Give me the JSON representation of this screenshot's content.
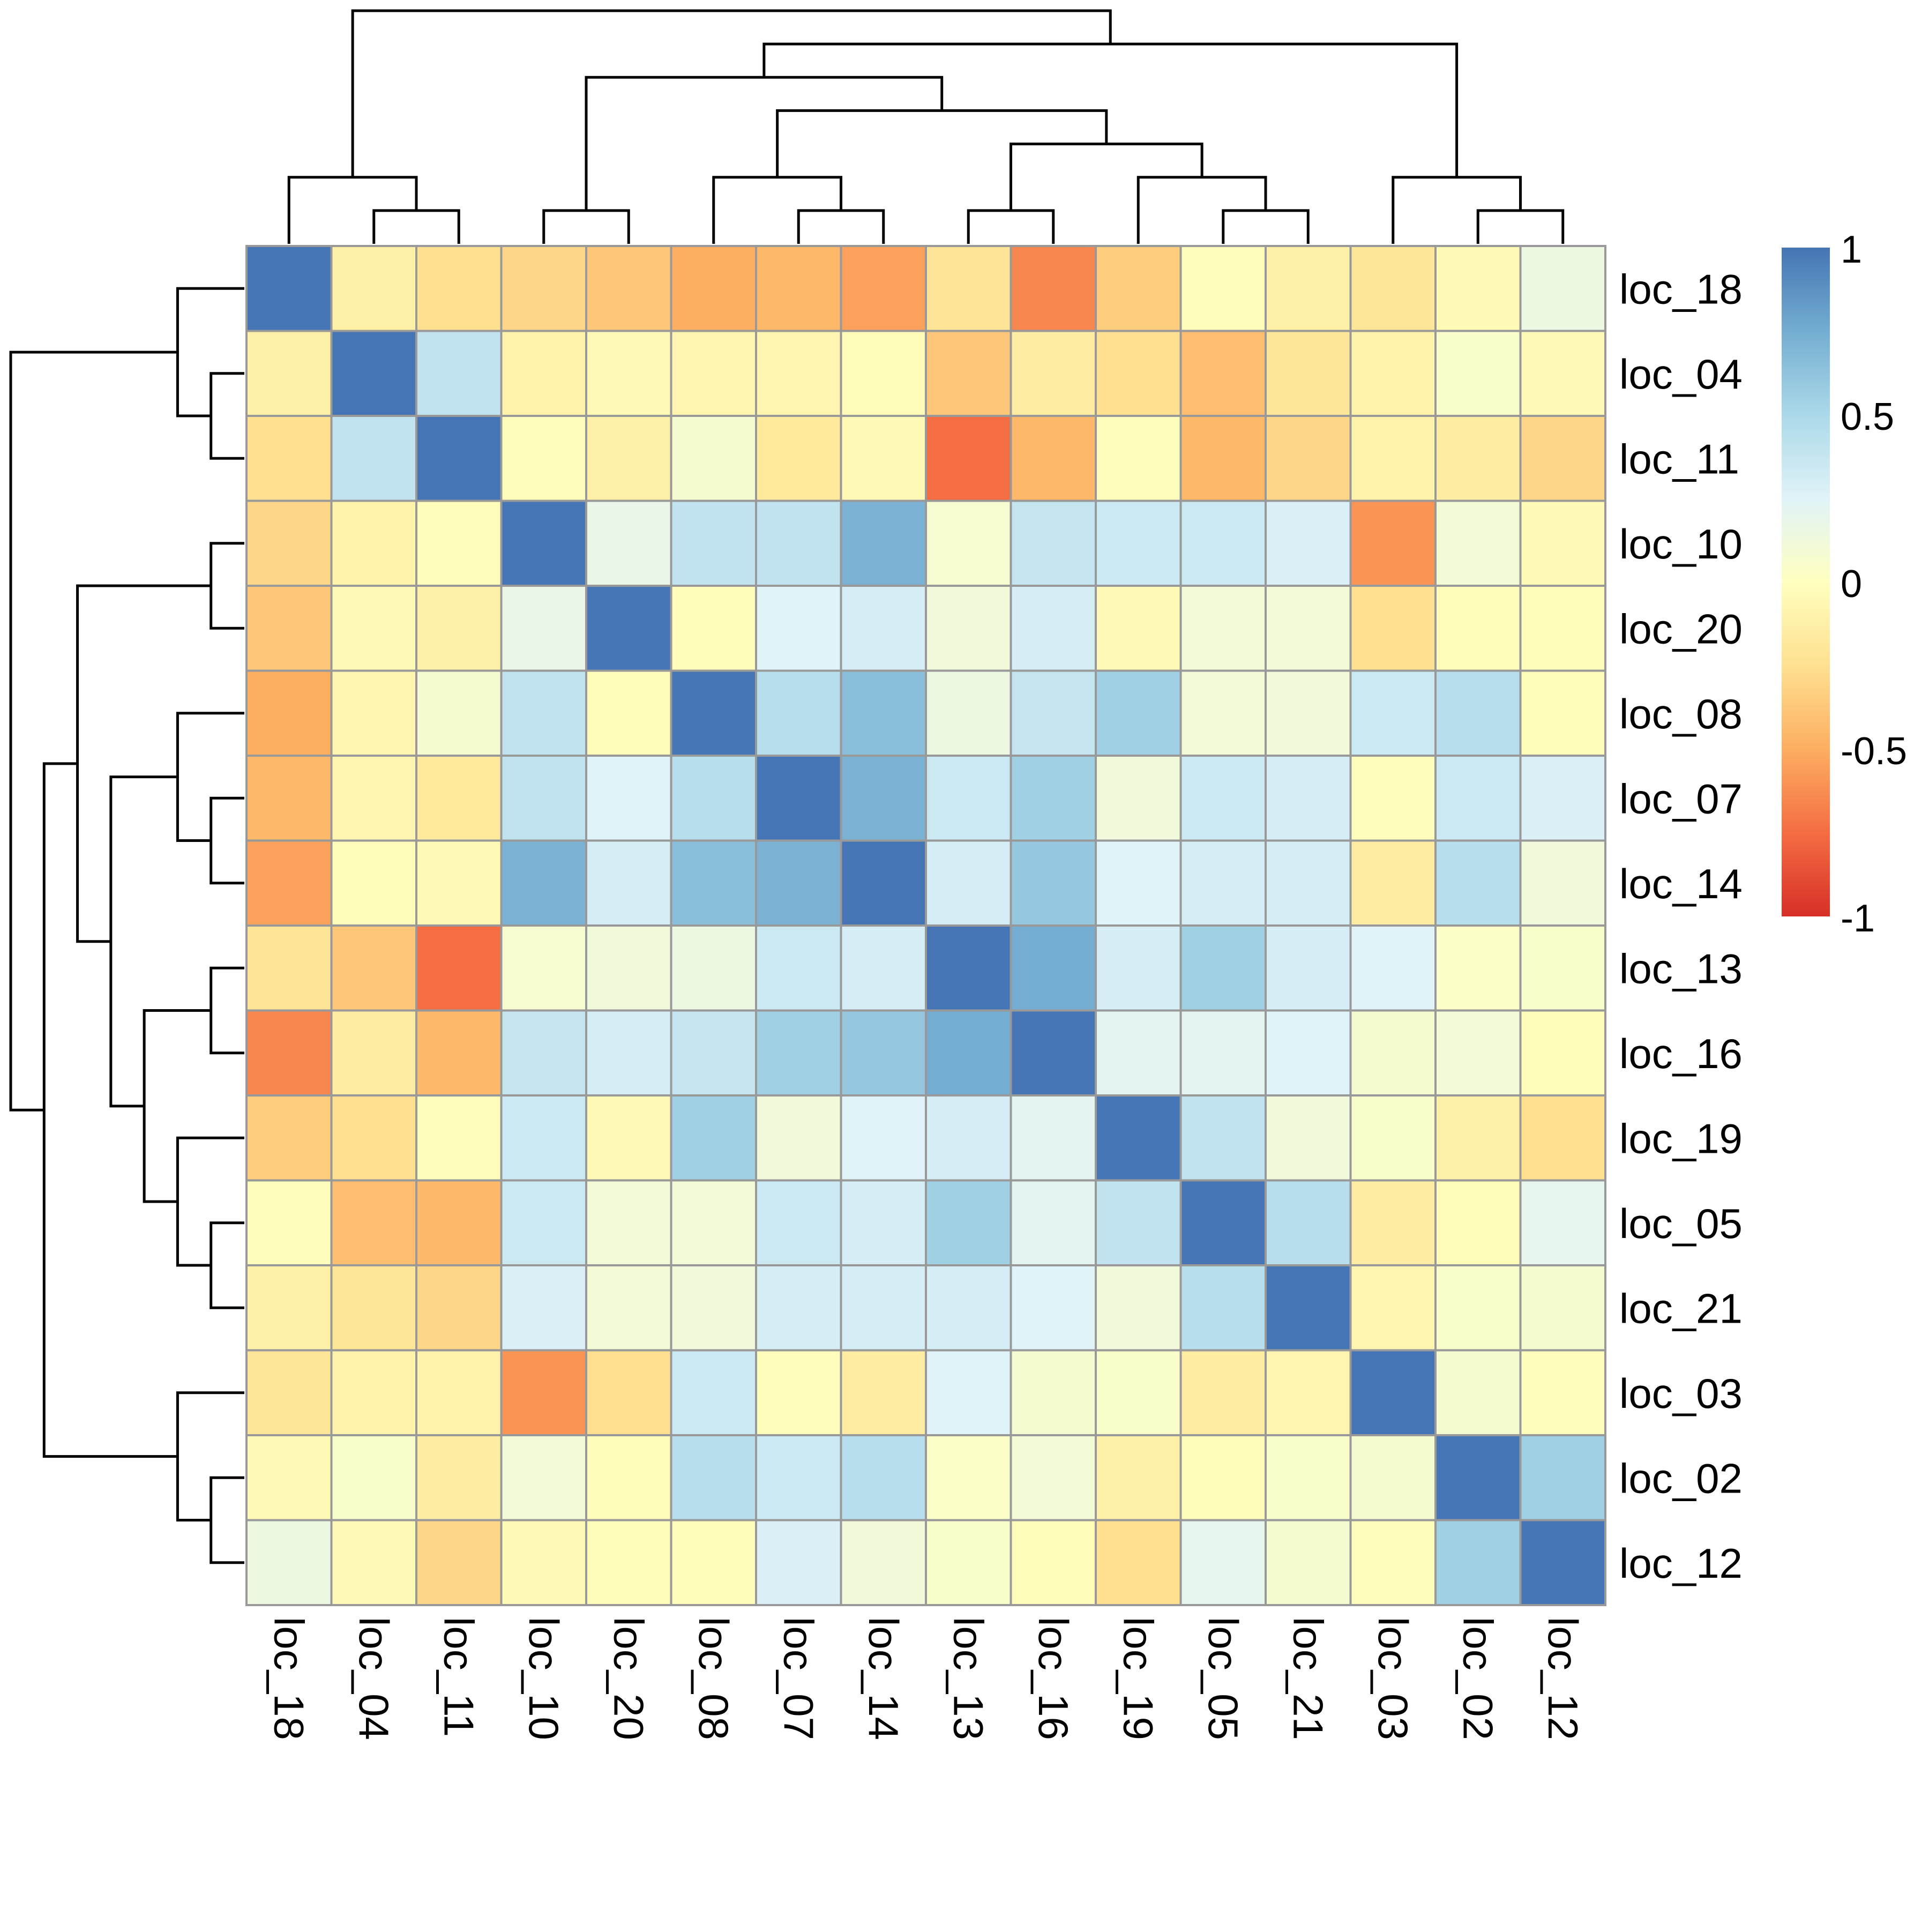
{
  "chart_data": {
    "type": "heatmap",
    "order": [
      "loc_18",
      "loc_04",
      "loc_11",
      "loc_10",
      "loc_20",
      "loc_08",
      "loc_07",
      "loc_14",
      "loc_13",
      "loc_16",
      "loc_19",
      "loc_05",
      "loc_21",
      "loc_03",
      "loc_02",
      "loc_12"
    ],
    "row_labels": [
      "loc_18",
      "loc_04",
      "loc_11",
      "loc_10",
      "loc_20",
      "loc_08",
      "loc_07",
      "loc_14",
      "loc_13",
      "loc_16",
      "loc_19",
      "loc_05",
      "loc_21",
      "loc_03",
      "loc_02",
      "loc_12"
    ],
    "col_labels": [
      "loc_18",
      "loc_04",
      "loc_11",
      "loc_10",
      "loc_20",
      "loc_08",
      "loc_07",
      "loc_14",
      "loc_13",
      "loc_16",
      "loc_19",
      "loc_05",
      "loc_21",
      "loc_03",
      "loc_02",
      "loc_12"
    ],
    "values": [
      [
        1.0,
        -0.12,
        -0.25,
        -0.3,
        -0.38,
        -0.5,
        -0.45,
        -0.55,
        -0.22,
        -0.65,
        -0.35,
        -0.02,
        -0.12,
        -0.2,
        -0.05,
        0.15
      ],
      [
        -0.12,
        1.0,
        0.4,
        -0.1,
        -0.05,
        -0.08,
        -0.08,
        -0.03,
        -0.38,
        -0.15,
        -0.25,
        -0.42,
        -0.2,
        -0.1,
        0.05,
        -0.05
      ],
      [
        -0.25,
        0.4,
        1.0,
        -0.02,
        -0.12,
        0.08,
        -0.18,
        -0.05,
        -0.75,
        -0.45,
        -0.02,
        -0.45,
        -0.3,
        -0.1,
        -0.15,
        -0.3
      ],
      [
        -0.3,
        -0.1,
        -0.02,
        1.0,
        0.18,
        0.4,
        0.4,
        0.72,
        0.07,
        0.38,
        0.35,
        0.35,
        0.28,
        -0.6,
        0.1,
        -0.05
      ],
      [
        -0.38,
        -0.05,
        -0.12,
        0.18,
        1.0,
        -0.03,
        0.25,
        0.3,
        0.12,
        0.3,
        -0.05,
        0.1,
        0.1,
        -0.25,
        -0.03,
        -0.03
      ],
      [
        -0.5,
        -0.08,
        0.08,
        0.4,
        -0.03,
        1.0,
        0.45,
        0.65,
        0.15,
        0.38,
        0.55,
        0.1,
        0.12,
        0.35,
        0.45,
        -0.03
      ],
      [
        -0.45,
        -0.08,
        -0.18,
        0.4,
        0.25,
        0.45,
        1.0,
        0.72,
        0.35,
        0.55,
        0.12,
        0.35,
        0.3,
        -0.02,
        0.35,
        0.28
      ],
      [
        -0.55,
        -0.03,
        -0.05,
        0.72,
        0.3,
        0.65,
        0.72,
        1.0,
        0.3,
        0.6,
        0.25,
        0.3,
        0.3,
        -0.15,
        0.45,
        0.12
      ],
      [
        -0.22,
        -0.38,
        -0.75,
        0.07,
        0.12,
        0.15,
        0.35,
        0.3,
        1.0,
        0.75,
        0.3,
        0.55,
        0.3,
        0.25,
        0.03,
        0.05
      ],
      [
        -0.65,
        -0.15,
        -0.45,
        0.38,
        0.3,
        0.38,
        0.55,
        0.6,
        0.75,
        1.0,
        0.22,
        0.22,
        0.25,
        0.08,
        0.1,
        -0.03
      ],
      [
        -0.35,
        -0.25,
        -0.02,
        0.35,
        -0.05,
        0.55,
        0.12,
        0.25,
        0.3,
        0.22,
        1.0,
        0.4,
        0.12,
        0.05,
        -0.12,
        -0.25
      ],
      [
        -0.02,
        -0.42,
        -0.45,
        0.35,
        0.1,
        0.1,
        0.35,
        0.3,
        0.55,
        0.22,
        0.4,
        1.0,
        0.45,
        -0.15,
        -0.03,
        0.2
      ],
      [
        -0.12,
        -0.2,
        -0.3,
        0.28,
        0.1,
        0.12,
        0.3,
        0.3,
        0.3,
        0.25,
        0.12,
        0.45,
        1.0,
        -0.08,
        0.05,
        0.08
      ],
      [
        -0.2,
        -0.1,
        -0.1,
        -0.6,
        -0.25,
        0.35,
        -0.02,
        -0.15,
        0.25,
        0.08,
        0.05,
        -0.15,
        -0.08,
        1.0,
        0.08,
        -0.02
      ],
      [
        -0.05,
        0.05,
        -0.15,
        0.1,
        -0.03,
        0.45,
        0.35,
        0.45,
        0.03,
        0.1,
        -0.12,
        -0.03,
        0.05,
        0.08,
        1.0,
        0.55
      ],
      [
        0.15,
        -0.05,
        -0.3,
        -0.05,
        -0.03,
        -0.03,
        0.28,
        0.12,
        0.05,
        -0.03,
        -0.25,
        0.2,
        0.08,
        -0.02,
        0.55,
        1.0
      ]
    ],
    "color_scale": {
      "min": -1,
      "max": 1,
      "stops": [
        "#D73027",
        "#F46D43",
        "#FDAE61",
        "#FEE090",
        "#FFFFBF",
        "#E0F3F8",
        "#ABD9E9",
        "#74ADD1",
        "#4575B4"
      ]
    },
    "legend": {
      "position": "right",
      "ticks": [
        {
          "value": 1,
          "label": "1"
        },
        {
          "value": 0.5,
          "label": "0.5"
        },
        {
          "value": 0,
          "label": "0"
        },
        {
          "value": -0.5,
          "label": "-0.5"
        },
        {
          "value": -1,
          "label": "-1"
        }
      ]
    },
    "dendrogram_merges": [
      [
        "loc_07",
        "loc_14"
      ],
      [
        "loc_04",
        "loc_11"
      ],
      [
        "loc_05",
        "loc_21"
      ],
      [
        "loc_02",
        "loc_12"
      ],
      [
        "loc_08",
        [
          "loc_07",
          "loc_14"
        ]
      ],
      [
        "loc_13",
        "loc_16"
      ],
      [
        "loc_10",
        "loc_20"
      ],
      [
        "loc_19",
        [
          "loc_05",
          "loc_21"
        ]
      ],
      [
        [
          "loc_13",
          "loc_16"
        ],
        [
          "loc_19",
          [
            "loc_05",
            "loc_21"
          ]
        ]
      ],
      [
        [
          "loc_08",
          [
            "loc_07",
            "loc_14"
          ]
        ],
        [
          [
            "loc_13",
            "loc_16"
          ],
          [
            "loc_19",
            [
              "loc_05",
              "loc_21"
            ]
          ]
        ]
      ],
      [
        "loc_03",
        [
          "loc_02",
          "loc_12"
        ]
      ],
      [
        [
          "loc_10",
          "loc_20"
        ],
        [
          [
            "loc_08",
            [
              "loc_07",
              "loc_14"
            ]
          ],
          [
            [
              "loc_13",
              "loc_16"
            ],
            [
              "loc_19",
              [
                "loc_05",
                "loc_21"
              ]
            ]
          ]
        ]
      ],
      [
        "loc_18",
        [
          "loc_04",
          "loc_11"
        ]
      ],
      [
        [
          [
            "loc_10",
            "loc_20"
          ],
          [
            [
              "loc_08",
              [
                "loc_07",
                "loc_14"
              ]
            ],
            [
              [
                "loc_13",
                "loc_16"
              ],
              [
                "loc_19",
                [
                  "loc_05",
                  "loc_21"
                ]
              ]
            ]
          ]
        ],
        [
          "loc_03",
          [
            "loc_02",
            "loc_12"
          ]
        ]
      ],
      [
        [
          "loc_18",
          [
            "loc_04",
            "loc_11"
          ]
        ],
        [
          [
            [
              "loc_10",
              "loc_20"
            ],
            [
              [
                "loc_08",
                [
                  "loc_07",
                  "loc_14"
                ]
              ],
              [
                [
                  "loc_13",
                  "loc_16"
                ],
                [
                  "loc_19",
                  [
                    "loc_05",
                    "loc_21"
                  ]
                ]
              ]
            ]
          ],
          [
            "loc_03",
            [
              "loc_02",
              "loc_12"
            ]
          ]
        ]
      ]
    ]
  }
}
